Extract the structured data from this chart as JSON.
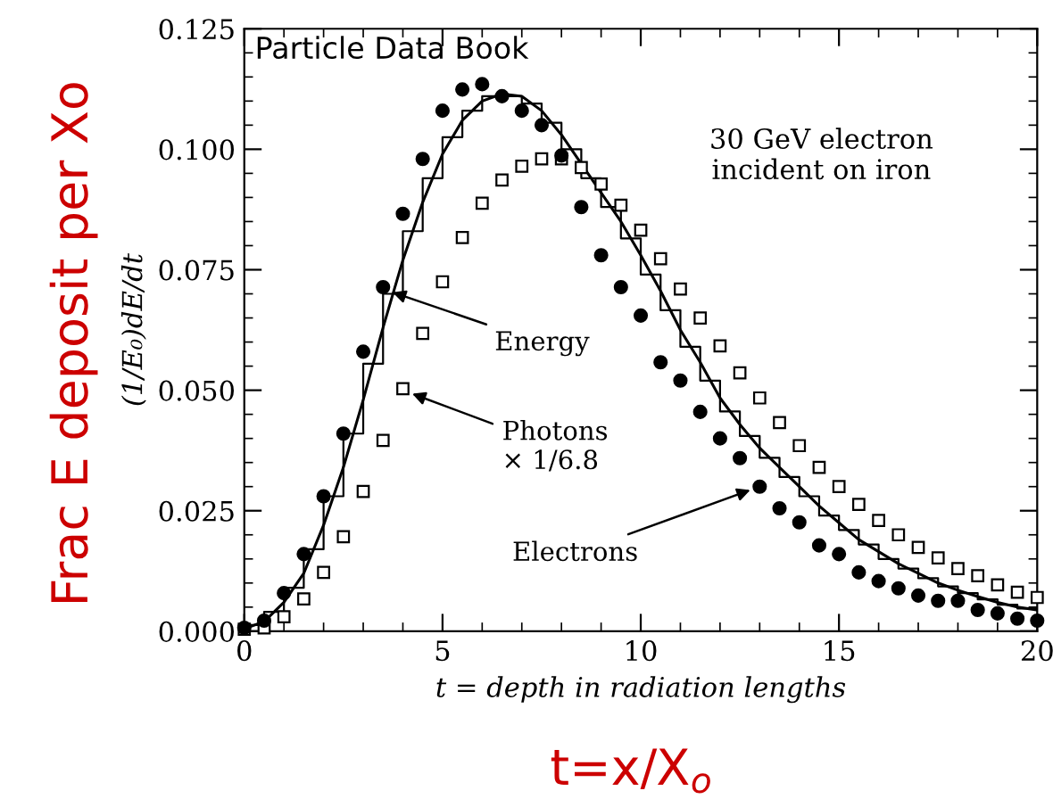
{
  "chart_data": {
    "type": "scatter",
    "ylabel": "(1/E₀)dE/dt",
    "xlabel": "t = depth in radiation lengths",
    "xlim": [
      0,
      20
    ],
    "xticks": [
      0,
      5,
      10,
      15,
      20
    ],
    "ylim": [
      0,
      0.125
    ],
    "yticks": [
      {
        "value": 0,
        "label": "0.000"
      },
      {
        "value": 0.025,
        "label": "0.025"
      },
      {
        "value": 0.05,
        "label": "0.050"
      },
      {
        "value": 0.075,
        "label": "0.075"
      },
      {
        "value": 0.1,
        "label": "0.100"
      },
      {
        "value": 0.125,
        "label": "0.125"
      }
    ],
    "grid": false,
    "legend": false,
    "x": [
      0,
      0.5,
      1,
      1.5,
      2,
      2.5,
      3,
      3.5,
      4,
      4.5,
      5,
      5.5,
      6,
      6.5,
      7,
      7.5,
      8,
      8.5,
      9,
      9.5,
      10,
      10.5,
      11,
      11.5,
      12,
      12.5,
      13,
      13.5,
      14,
      14.5,
      15,
      15.5,
      16,
      16.5,
      17,
      17.5,
      18,
      18.5,
      19,
      19.5,
      20
    ],
    "series": [
      {
        "type": "line",
        "color": "#000000",
        "marker": "none",
        "line_style": "solid",
        "values": [
          0.0005,
          0.002,
          0.006,
          0.012,
          0.022,
          0.034,
          0.048,
          0.063,
          0.077,
          0.089,
          0.099,
          0.106,
          0.11,
          0.1115,
          0.111,
          0.108,
          0.103,
          0.097,
          0.091,
          0.085,
          0.078,
          0.0706,
          0.0625,
          0.0558,
          0.0484,
          0.0429,
          0.038,
          0.034,
          0.03,
          0.026,
          0.0225,
          0.019,
          0.0165,
          0.014,
          0.012,
          0.01,
          0.0085,
          0.0072,
          0.006,
          0.005,
          0.0044
        ]
      },
      {
        "type": "step",
        "color": "#000000",
        "marker": "none",
        "line_style": "solid",
        "values": [
          0.0013,
          0.004,
          0.009,
          0.017,
          0.028,
          0.041,
          0.0555,
          0.07,
          0.083,
          0.094,
          0.1025,
          0.108,
          0.111,
          0.111,
          0.1095,
          0.1055,
          0.1,
          0.094,
          0.088,
          0.0815,
          0.074,
          0.0666,
          0.059,
          0.052,
          0.0456,
          0.0405,
          0.036,
          0.032,
          0.028,
          0.024,
          0.021,
          0.018,
          0.015,
          0.013,
          0.011,
          0.0093,
          0.0079,
          0.0066,
          0.0055,
          0.0047,
          0.0047
        ]
      },
      {
        "color": "#000000",
        "marker": "square",
        "values": [
          0.0004,
          0.0007,
          0.003,
          0.0067,
          0.0122,
          0.0196,
          0.029,
          0.0396,
          0.0503,
          0.0618,
          0.0725,
          0.0817,
          0.0888,
          0.0936,
          0.0965,
          0.098,
          0.098,
          0.0962,
          0.0928,
          0.0884,
          0.0832,
          0.0773,
          0.071,
          0.065,
          0.0592,
          0.0536,
          0.0484,
          0.0433,
          0.0385,
          0.034,
          0.03,
          0.0263,
          0.023,
          0.02,
          0.0174,
          0.0152,
          0.013,
          0.0115,
          0.0096,
          0.0081,
          0.007
        ]
      },
      {
        "color": "#000000",
        "marker": "circle",
        "values": [
          0.0007,
          0.0022,
          0.0079,
          0.016,
          0.028,
          0.041,
          0.058,
          0.0714,
          0.0866,
          0.098,
          0.108,
          0.1124,
          0.1135,
          0.111,
          0.108,
          0.105,
          0.0987,
          0.088,
          0.078,
          0.0714,
          0.0655,
          0.0558,
          0.052,
          0.0455,
          0.04,
          0.0359,
          0.03,
          0.0255,
          0.0226,
          0.0178,
          0.016,
          0.0122,
          0.0104,
          0.0089,
          0.0074,
          0.0063,
          0.0063,
          0.0044,
          0.0037,
          0.0026,
          0.0022
        ]
      }
    ],
    "annotations": [
      "Particle Data Book",
      "30 GeV electron\nincident on iron",
      {
        "text": "Energy",
        "x": 3.5,
        "y": 0.071
      },
      {
        "text": "Photons\n× 1/6.8",
        "x": 4,
        "y": 0.05
      },
      {
        "text": "Electrons",
        "x": 13,
        "y": 0.03
      },
      "Frac E deposit per Xo",
      "t=x/X$_{o}$"
    ]
  }
}
